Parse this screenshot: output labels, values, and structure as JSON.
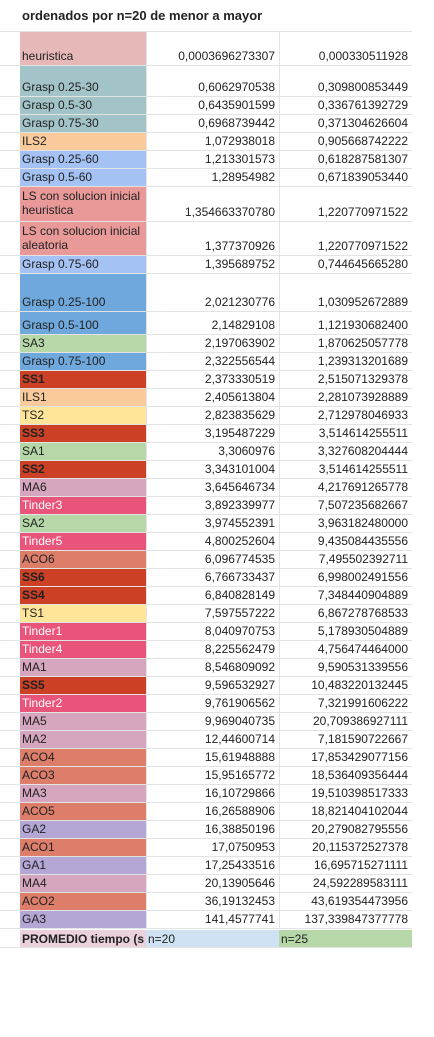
{
  "header": {
    "title": "ordenados por n=20 de menor a mayor"
  },
  "rows": [
    {
      "label": "heuristica",
      "v20": "0,0003696273307",
      "v25": "0,000330511928",
      "color": "#e6b8b7"
    },
    {
      "label": "Grasp 0.25-30",
      "v20": "0,6062970538",
      "v25": "0,309800853449",
      "color": "#a2c4c9"
    },
    {
      "label": "Grasp 0.5-30",
      "v20": "0,6435901599",
      "v25": "0,336761392729",
      "color": "#a2c4c9"
    },
    {
      "label": "Grasp 0.75-30",
      "v20": "0,6968739442",
      "v25": "0,371304626604",
      "color": "#a2c4c9"
    },
    {
      "label": "ILS2",
      "v20": "1,072938018",
      "v25": "0,905668742222",
      "color": "#f9cb9c"
    },
    {
      "label": "Grasp 0.25-60",
      "v20": "1,213301573",
      "v25": "0,618287581307",
      "color": "#a4c2f4"
    },
    {
      "label": "Grasp 0.5-60",
      "v20": "1,28954982",
      "v25": "0,671839053440",
      "color": "#a4c2f4"
    },
    {
      "label": "LS con solucion inicial heuristica",
      "v20": "1,354663370780",
      "v25": "1,220770971522",
      "color": "#ea9999"
    },
    {
      "label": "LS con solucion inicial aleatoria",
      "v20": "1,377370926",
      "v25": "1,220770971522",
      "color": "#ea9999"
    },
    {
      "label": "Grasp 0.75-60",
      "v20": "1,395689752",
      "v25": "0,744645665280",
      "color": "#a4c2f4"
    },
    {
      "label": "Grasp 0.25-100",
      "v20": "2,021230776",
      "v25": "1,030952672889",
      "color": "#6fa8dc"
    },
    {
      "label": "Grasp 0.5-100",
      "v20": "2,14829108",
      "v25": "1,121930682400",
      "color": "#6fa8dc"
    },
    {
      "label": "SA3",
      "v20": "2,197063902",
      "v25": "1,870625057778",
      "color": "#b6d7a8"
    },
    {
      "label": "Grasp 0.75-100",
      "v20": "2,322556544",
      "v25": "1,239313201689",
      "color": "#6fa8dc"
    },
    {
      "label": "SS1",
      "v20": "2,373330519",
      "v25": "2,515071329378",
      "color": "#cc4125",
      "bold": true
    },
    {
      "label": "ILS1",
      "v20": "2,405613804",
      "v25": "2,281073928889",
      "color": "#f9cb9c"
    },
    {
      "label": "TS2",
      "v20": "2,823835629",
      "v25": "2,712978046933",
      "color": "#ffe599"
    },
    {
      "label": "SS3",
      "v20": "3,195487229",
      "v25": "3,514614255511",
      "color": "#cc4125",
      "bold": true
    },
    {
      "label": "SA1",
      "v20": "3,3060976",
      "v25": "3,327608204444",
      "color": "#b6d7a8"
    },
    {
      "label": "SS2",
      "v20": "3,343101004",
      "v25": "3,514614255511",
      "color": "#cc4125",
      "bold": true
    },
    {
      "label": "MA6",
      "v20": "3,645646734",
      "v25": "4,217691265778",
      "color": "#d5a6bd"
    },
    {
      "label": "Tinder3",
      "v20": "3,892339977",
      "v25": "7,507235682667",
      "color": "#e8547a",
      "white": true
    },
    {
      "label": "SA2",
      "v20": "3,974552391",
      "v25": "3,963182480000",
      "color": "#b6d7a8"
    },
    {
      "label": "Tinder5",
      "v20": "4,800252604",
      "v25": "9,435084435556",
      "color": "#e8547a",
      "white": true
    },
    {
      "label": "ACO6",
      "v20": "6,096774535",
      "v25": "7,495502392711",
      "color": "#dd7e6b"
    },
    {
      "label": "SS6",
      "v20": "6,766733437",
      "v25": "6,998002491556",
      "color": "#cc4125",
      "bold": true
    },
    {
      "label": "SS4",
      "v20": "6,840828149",
      "v25": "7,348440904889",
      "color": "#cc4125",
      "bold": true
    },
    {
      "label": "TS1",
      "v20": "7,597557222",
      "v25": "6,867278768533",
      "color": "#ffe599"
    },
    {
      "label": "Tinder1",
      "v20": "8,040970753",
      "v25": "5,178930504889",
      "color": "#e8547a",
      "white": true
    },
    {
      "label": "Tinder4",
      "v20": "8,225562479",
      "v25": "4,756474464000",
      "color": "#e8547a",
      "white": true
    },
    {
      "label": "MA1",
      "v20": "8,546809092",
      "v25": "9,590531339556",
      "color": "#d5a6bd"
    },
    {
      "label": "SS5",
      "v20": "9,596532927",
      "v25": "10,483220132445",
      "color": "#cc4125",
      "bold": true
    },
    {
      "label": "Tinder2",
      "v20": "9,761906562",
      "v25": "7,321991606222",
      "color": "#e8547a",
      "white": true
    },
    {
      "label": "MA5",
      "v20": "9,969040735",
      "v25": "20,709386927111",
      "color": "#d5a6bd"
    },
    {
      "label": "MA2",
      "v20": "12,44600714",
      "v25": "7,181590722667",
      "color": "#d5a6bd"
    },
    {
      "label": "ACO4",
      "v20": "15,61948888",
      "v25": "17,853429077156",
      "color": "#dd7e6b"
    },
    {
      "label": "ACO3",
      "v20": "15,95165772",
      "v25": "18,536409356444",
      "color": "#dd7e6b"
    },
    {
      "label": "MA3",
      "v20": "16,10729866",
      "v25": "19,510398517333",
      "color": "#d5a6bd"
    },
    {
      "label": "ACO5",
      "v20": "16,26588906",
      "v25": "18,821404102044",
      "color": "#dd7e6b"
    },
    {
      "label": "GA2",
      "v20": "16,38850196",
      "v25": "20,279082795556",
      "color": "#b4a7d6"
    },
    {
      "label": "ACO1",
      "v20": "17,0750953",
      "v25": "20,115372527378",
      "color": "#dd7e6b"
    },
    {
      "label": "GA1",
      "v20": "17,25433516",
      "v25": "16,695715271111",
      "color": "#b4a7d6"
    },
    {
      "label": "MA4",
      "v20": "20,13905646",
      "v25": "24,592289583111",
      "color": "#d5a6bd"
    },
    {
      "label": "ACO2",
      "v20": "36,19132453",
      "v25": "43,619354473956",
      "color": "#dd7e6b"
    },
    {
      "label": "GA3",
      "v20": "141,4577741",
      "v25": "137,339847377778",
      "color": "#b4a7d6"
    }
  ],
  "footer": {
    "label": "PROMEDIO tiempo (s",
    "n20": "n=20",
    "n25": "n=25",
    "label_color": "#ead1dc",
    "n20_color": "#cfe2f3",
    "n25_color": "#b6d7a8"
  }
}
